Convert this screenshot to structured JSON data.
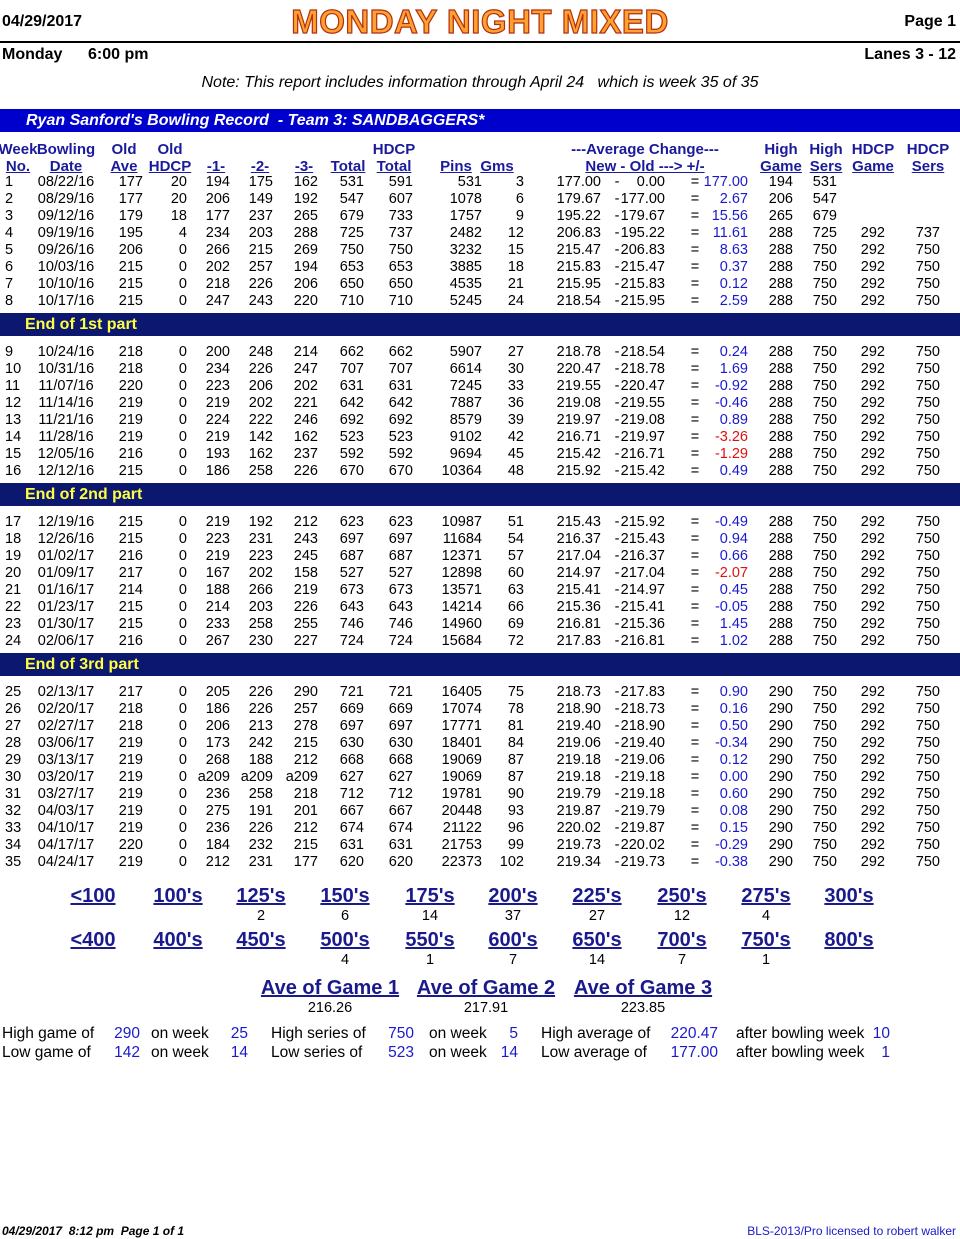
{
  "header": {
    "date": "04/29/2017",
    "title": "MONDAY NIGHT MIXED",
    "page": "Page 1",
    "day": "Monday",
    "time": "6:00 pm",
    "lanes": "Lanes 3 - 12",
    "note": "Note: This report includes information through April 24   which is week 35 of 35"
  },
  "record_title": "Ryan Sanford's Bowling Record  - Team 3: SANDBAGGERS*",
  "columns": [
    [
      "Week",
      "No."
    ],
    [
      "Bowling",
      "Date"
    ],
    [
      "Old",
      "Ave"
    ],
    [
      "Old",
      "HDCP"
    ],
    [
      "-1-"
    ],
    [
      "-2-"
    ],
    [
      "-3-"
    ],
    [
      "Total"
    ],
    [
      "HDCP",
      "Total"
    ],
    [
      "Pins"
    ],
    [
      "Gms"
    ],
    [
      "---Average Change---",
      "New - Old ---> +/-"
    ],
    [
      "High",
      "Game"
    ],
    [
      "High",
      "Sers"
    ],
    [
      "HDCP",
      "Game"
    ],
    [
      "HDCP",
      "Sers"
    ]
  ],
  "separators": [
    "-",
    "="
  ],
  "sections": [
    {
      "rows": [
        [
          "1",
          "08/22/16",
          "177",
          "20",
          "194",
          "175",
          "162",
          "531",
          "591",
          "531",
          "3",
          "177.00",
          "0.00",
          "177.00",
          "194",
          "531"
        ],
        [
          "2",
          "08/29/16",
          "177",
          "20",
          "206",
          "149",
          "192",
          "547",
          "607",
          "1078",
          "6",
          "179.67",
          "177.00",
          "2.67",
          "206",
          "547"
        ],
        [
          "3",
          "09/12/16",
          "179",
          "18",
          "177",
          "237",
          "265",
          "679",
          "733",
          "1757",
          "9",
          "195.22",
          "179.67",
          "15.56",
          "265",
          "679"
        ],
        [
          "4",
          "09/19/16",
          "195",
          "4",
          "234",
          "203",
          "288",
          "725",
          "737",
          "2482",
          "12",
          "206.83",
          "195.22",
          "11.61",
          "288",
          "725",
          "292",
          "737"
        ],
        [
          "5",
          "09/26/16",
          "206",
          "0",
          "266",
          "215",
          "269",
          "750",
          "750",
          "3232",
          "15",
          "215.47",
          "206.83",
          "8.63",
          "288",
          "750",
          "292",
          "750"
        ],
        [
          "6",
          "10/03/16",
          "215",
          "0",
          "202",
          "257",
          "194",
          "653",
          "653",
          "3885",
          "18",
          "215.83",
          "215.47",
          "0.37",
          "288",
          "750",
          "292",
          "750"
        ],
        [
          "7",
          "10/10/16",
          "215",
          "0",
          "218",
          "226",
          "206",
          "650",
          "650",
          "4535",
          "21",
          "215.95",
          "215.83",
          "0.12",
          "288",
          "750",
          "292",
          "750"
        ],
        [
          "8",
          "10/17/16",
          "215",
          "0",
          "247",
          "243",
          "220",
          "710",
          "710",
          "5245",
          "24",
          "218.54",
          "215.95",
          "2.59",
          "288",
          "750",
          "292",
          "750"
        ]
      ],
      "end": "End of 1st part"
    },
    {
      "rows": [
        [
          "9",
          "10/24/16",
          "218",
          "0",
          "200",
          "248",
          "214",
          "662",
          "662",
          "5907",
          "27",
          "218.78",
          "218.54",
          "0.24",
          "288",
          "750",
          "292",
          "750"
        ],
        [
          "10",
          "10/31/16",
          "218",
          "0",
          "234",
          "226",
          "247",
          "707",
          "707",
          "6614",
          "30",
          "220.47",
          "218.78",
          "1.69",
          "288",
          "750",
          "292",
          "750"
        ],
        [
          "11",
          "11/07/16",
          "220",
          "0",
          "223",
          "206",
          "202",
          "631",
          "631",
          "7245",
          "33",
          "219.55",
          "220.47",
          "-0.92",
          "288",
          "750",
          "292",
          "750"
        ],
        [
          "12",
          "11/14/16",
          "219",
          "0",
          "219",
          "202",
          "221",
          "642",
          "642",
          "7887",
          "36",
          "219.08",
          "219.55",
          "-0.46",
          "288",
          "750",
          "292",
          "750"
        ],
        [
          "13",
          "11/21/16",
          "219",
          "0",
          "224",
          "222",
          "246",
          "692",
          "692",
          "8579",
          "39",
          "219.97",
          "219.08",
          "0.89",
          "288",
          "750",
          "292",
          "750"
        ],
        [
          "14",
          "11/28/16",
          "219",
          "0",
          "219",
          "142",
          "162",
          "523",
          "523",
          "9102",
          "42",
          "216.71",
          "219.97",
          "-3.26",
          "288",
          "750",
          "292",
          "750"
        ],
        [
          "15",
          "12/05/16",
          "216",
          "0",
          "193",
          "162",
          "237",
          "592",
          "592",
          "9694",
          "45",
          "215.42",
          "216.71",
          "-1.29",
          "288",
          "750",
          "292",
          "750"
        ],
        [
          "16",
          "12/12/16",
          "215",
          "0",
          "186",
          "258",
          "226",
          "670",
          "670",
          "10364",
          "48",
          "215.92",
          "215.42",
          "0.49",
          "288",
          "750",
          "292",
          "750"
        ]
      ],
      "end": "End of 2nd part"
    },
    {
      "rows": [
        [
          "17",
          "12/19/16",
          "215",
          "0",
          "219",
          "192",
          "212",
          "623",
          "623",
          "10987",
          "51",
          "215.43",
          "215.92",
          "-0.49",
          "288",
          "750",
          "292",
          "750"
        ],
        [
          "18",
          "12/26/16",
          "215",
          "0",
          "223",
          "231",
          "243",
          "697",
          "697",
          "11684",
          "54",
          "216.37",
          "215.43",
          "0.94",
          "288",
          "750",
          "292",
          "750"
        ],
        [
          "19",
          "01/02/17",
          "216",
          "0",
          "219",
          "223",
          "245",
          "687",
          "687",
          "12371",
          "57",
          "217.04",
          "216.37",
          "0.66",
          "288",
          "750",
          "292",
          "750"
        ],
        [
          "20",
          "01/09/17",
          "217",
          "0",
          "167",
          "202",
          "158",
          "527",
          "527",
          "12898",
          "60",
          "214.97",
          "217.04",
          "-2.07",
          "288",
          "750",
          "292",
          "750"
        ],
        [
          "21",
          "01/16/17",
          "214",
          "0",
          "188",
          "266",
          "219",
          "673",
          "673",
          "13571",
          "63",
          "215.41",
          "214.97",
          "0.45",
          "288",
          "750",
          "292",
          "750"
        ],
        [
          "22",
          "01/23/17",
          "215",
          "0",
          "214",
          "203",
          "226",
          "643",
          "643",
          "14214",
          "66",
          "215.36",
          "215.41",
          "-0.05",
          "288",
          "750",
          "292",
          "750"
        ],
        [
          "23",
          "01/30/17",
          "215",
          "0",
          "233",
          "258",
          "255",
          "746",
          "746",
          "14960",
          "69",
          "216.81",
          "215.36",
          "1.45",
          "288",
          "750",
          "292",
          "750"
        ],
        [
          "24",
          "02/06/17",
          "216",
          "0",
          "267",
          "230",
          "227",
          "724",
          "724",
          "15684",
          "72",
          "217.83",
          "216.81",
          "1.02",
          "288",
          "750",
          "292",
          "750"
        ]
      ],
      "end": "End of 3rd part"
    },
    {
      "rows": [
        [
          "25",
          "02/13/17",
          "217",
          "0",
          "205",
          "226",
          "290",
          "721",
          "721",
          "16405",
          "75",
          "218.73",
          "217.83",
          "0.90",
          "290",
          "750",
          "292",
          "750"
        ],
        [
          "26",
          "02/20/17",
          "218",
          "0",
          "186",
          "226",
          "257",
          "669",
          "669",
          "17074",
          "78",
          "218.90",
          "218.73",
          "0.16",
          "290",
          "750",
          "292",
          "750"
        ],
        [
          "27",
          "02/27/17",
          "218",
          "0",
          "206",
          "213",
          "278",
          "697",
          "697",
          "17771",
          "81",
          "219.40",
          "218.90",
          "0.50",
          "290",
          "750",
          "292",
          "750"
        ],
        [
          "28",
          "03/06/17",
          "219",
          "0",
          "173",
          "242",
          "215",
          "630",
          "630",
          "18401",
          "84",
          "219.06",
          "219.40",
          "-0.34",
          "290",
          "750",
          "292",
          "750"
        ],
        [
          "29",
          "03/13/17",
          "219",
          "0",
          "268",
          "188",
          "212",
          "668",
          "668",
          "19069",
          "87",
          "219.18",
          "219.06",
          "0.12",
          "290",
          "750",
          "292",
          "750"
        ],
        [
          "30",
          "03/20/17",
          "219",
          "0",
          "a209",
          "a209",
          "a209",
          "627",
          "627",
          "19069",
          "87",
          "219.18",
          "219.18",
          "0.00",
          "290",
          "750",
          "292",
          "750"
        ],
        [
          "31",
          "03/27/17",
          "219",
          "0",
          "236",
          "258",
          "218",
          "712",
          "712",
          "19781",
          "90",
          "219.79",
          "219.18",
          "0.60",
          "290",
          "750",
          "292",
          "750"
        ],
        [
          "32",
          "04/03/17",
          "219",
          "0",
          "275",
          "191",
          "201",
          "667",
          "667",
          "20448",
          "93",
          "219.87",
          "219.79",
          "0.08",
          "290",
          "750",
          "292",
          "750"
        ],
        [
          "33",
          "04/10/17",
          "219",
          "0",
          "236",
          "226",
          "212",
          "674",
          "674",
          "21122",
          "96",
          "220.02",
          "219.87",
          "0.15",
          "290",
          "750",
          "292",
          "750"
        ],
        [
          "34",
          "04/17/17",
          "220",
          "0",
          "184",
          "232",
          "215",
          "631",
          "631",
          "21753",
          "99",
          "219.73",
          "220.02",
          "-0.29",
          "290",
          "750",
          "292",
          "750"
        ],
        [
          "35",
          "04/24/17",
          "219",
          "0",
          "212",
          "231",
          "177",
          "620",
          "620",
          "22373",
          "102",
          "219.34",
          "219.73",
          "-0.38",
          "290",
          "750",
          "292",
          "750"
        ]
      ]
    }
  ],
  "game_ranges": {
    "labels": [
      "<100",
      "100's",
      "125's",
      "150's",
      "175's",
      "200's",
      "225's",
      "250's",
      "275's",
      "300's"
    ],
    "counts": [
      null,
      null,
      "2",
      "6",
      "14",
      "37",
      "27",
      "12",
      "4",
      null
    ]
  },
  "series_ranges": {
    "labels": [
      "<400",
      "400's",
      "450's",
      "500's",
      "550's",
      "600's",
      "650's",
      "700's",
      "750's",
      "800's"
    ],
    "counts": [
      null,
      null,
      null,
      "4",
      "1",
      "7",
      "14",
      "7",
      "1",
      null
    ]
  },
  "game_averages": {
    "labels": [
      "Ave of Game 1",
      "Ave of Game 2",
      "Ave of Game 3"
    ],
    "values": [
      "216.26",
      "217.91",
      "223.85"
    ]
  },
  "summary": {
    "high": [
      "High game of",
      "290",
      "on week",
      "25",
      "High series of",
      "750",
      "on week",
      "5",
      "High average of",
      "220.47",
      "after bowling week",
      "10"
    ],
    "low": [
      "Low game of",
      "142",
      "on week",
      "14",
      "Low series of",
      "523",
      "on week",
      "14",
      "Low average of",
      "177.00",
      "after bowling week",
      "1"
    ]
  },
  "footer": {
    "left": "04/29/2017  8:12 pm  Page 1 of 1",
    "right": "BLS-2013/Pro licensed to robert walker"
  }
}
